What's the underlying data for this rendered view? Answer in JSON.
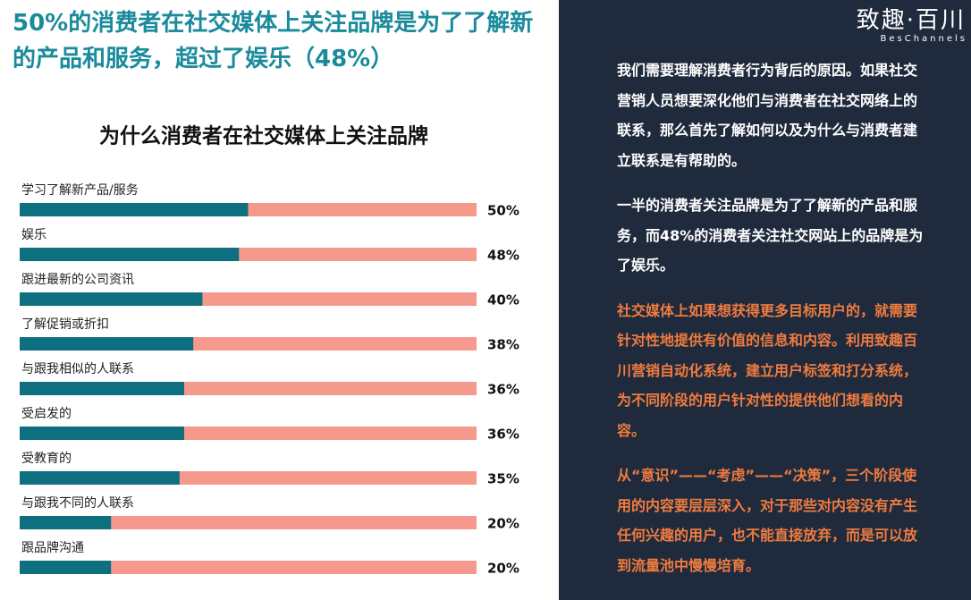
{
  "headline": "50%的消费者在社交媒体上关注品牌是为了了解新的产品和服务，超过了娱乐（48%）",
  "chart_data": {
    "type": "progress_bar",
    "title": "为什么消费者在社交媒体上关注品牌",
    "categories": [
      "学习了解新产品/服务",
      "娱乐",
      "跟进最新的公司资讯",
      "了解促销或折扣",
      "与跟我相似的人联系",
      "受启发的",
      "受教育的",
      "与跟我不同的人联系",
      "跟品牌沟通"
    ],
    "values": [
      50,
      48,
      40,
      38,
      36,
      36,
      35,
      20,
      20
    ],
    "value_labels": [
      "50%",
      "48%",
      "40%",
      "38%",
      "36%",
      "36%",
      "35%",
      "20%",
      "20%"
    ],
    "xlim": [
      0,
      100
    ],
    "color": "#0e6f80",
    "track_color": "#f5998c"
  },
  "panel": {
    "logo": "致趣·百川",
    "logo_sub": "BesChannels",
    "paragraphs": [
      {
        "text": "我们需要理解消费者行为背后的原因。如果社交营销人员想要深化他们与消费者在社交网络上的联系，那么首先了解如何以及为什么与消费者建立联系是有帮助的。",
        "color": "#ffffff"
      },
      {
        "text": "一半的消费者关注品牌是为了了解新的产品和服务，而48%的消费者关注社交网站上的品牌是为了娱乐。",
        "color": "#ffffff"
      },
      {
        "text": "社交媒体上如果想获得更多目标用户的，就需要针对性地提供有价值的信息和内容。利用致趣百川营销自动化系统，建立用户标签和打分系统，为不同阶段的用户针对性的提供他们想看的内容。",
        "color": "#f07b3f"
      },
      {
        "text": "从“意识”——“考虑”——“决策”，三个阶段使用的内容要层层深入，对于那些对内容没有产生任何兴趣的用户，也不能直接放弃，而是可以放到流量池中慢慢培育。",
        "color": "#f07b3f"
      }
    ]
  }
}
